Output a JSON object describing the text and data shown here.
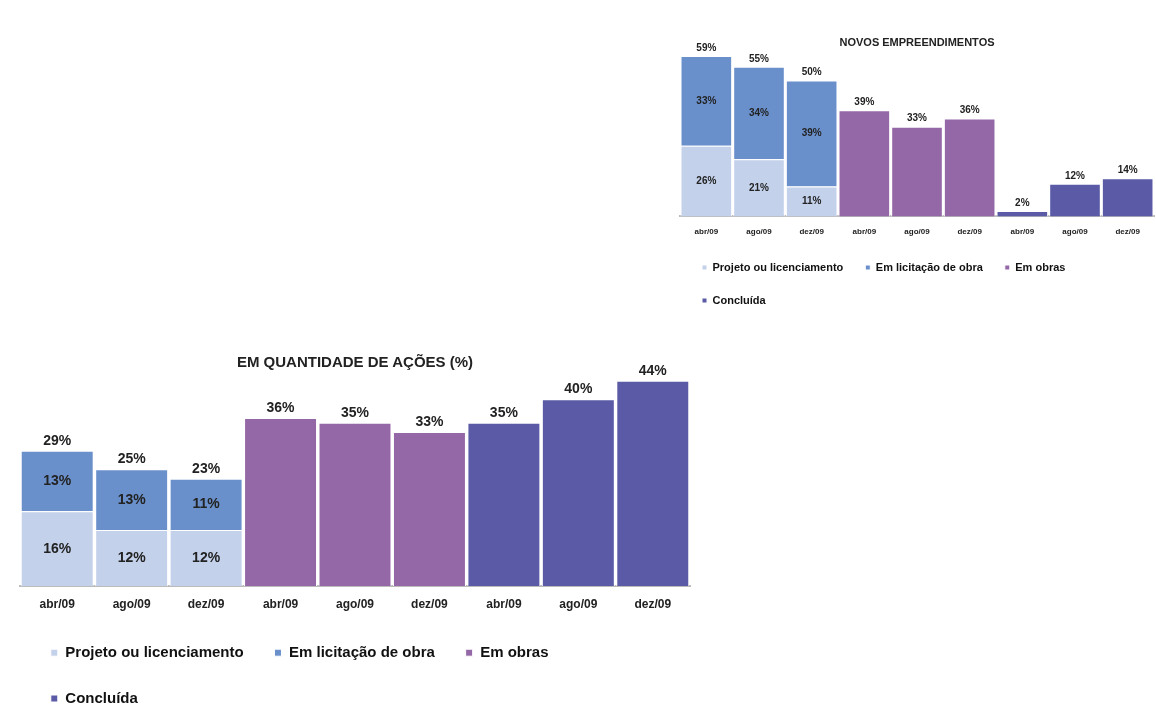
{
  "chart_data": [
    {
      "type": "bar",
      "title": "NOVOS EMPREENDIMENTOS",
      "stacked": true,
      "legend": "bottom",
      "tick_labels": "x",
      "categories": [
        "abr/09",
        "ago/09",
        "dez/09",
        "abr/09",
        "ago/09",
        "dez/09",
        "abr/09",
        "ago/09",
        "dez/09"
      ],
      "series": [
        {
          "name": "Projeto ou licenciamento",
          "color": "#c3d1ea",
          "values": [
            26,
            21,
            11,
            null,
            null,
            null,
            null,
            null,
            null
          ],
          "value_labels": [
            "26%",
            "21%",
            "11%",
            null,
            null,
            null,
            null,
            null,
            null
          ]
        },
        {
          "name": "Em licitação de obra",
          "color": "#6a90cc",
          "values": [
            33,
            34,
            39,
            null,
            null,
            null,
            null,
            null,
            null
          ],
          "value_labels": [
            "33%",
            "34%",
            "39%",
            null,
            null,
            null,
            null,
            null,
            null
          ]
        },
        {
          "name": "Em obras",
          "color": "#9467a6",
          "values": [
            null,
            null,
            null,
            39,
            33,
            36,
            null,
            null,
            null
          ],
          "value_labels": [
            null,
            null,
            null,
            "39%",
            "33%",
            "36%",
            null,
            null,
            null
          ]
        },
        {
          "name": "Concluída",
          "color": "#5a5aa6",
          "values": [
            null,
            null,
            null,
            null,
            null,
            null,
            2,
            12,
            14
          ],
          "value_labels": [
            null,
            null,
            null,
            null,
            null,
            null,
            "2%",
            "12%",
            "14%"
          ]
        }
      ],
      "totals": [
        "59%",
        "55%",
        "50%",
        null,
        null,
        null,
        null,
        null,
        null
      ]
    },
    {
      "type": "bar",
      "title": "EM QUANTIDADE DE AÇÕES (%)",
      "stacked": true,
      "legend": "bottom",
      "tick_labels": "x",
      "categories": [
        "abr/09",
        "ago/09",
        "dez/09",
        "abr/09",
        "ago/09",
        "dez/09",
        "abr/09",
        "ago/09",
        "dez/09"
      ],
      "series": [
        {
          "name": "Projeto ou licenciamento",
          "color": "#c3d1ea",
          "values": [
            16,
            12,
            12,
            null,
            null,
            null,
            null,
            null,
            null
          ],
          "value_labels": [
            "16%",
            "12%",
            "12%",
            null,
            null,
            null,
            null,
            null,
            null
          ]
        },
        {
          "name": "Em licitação de obra",
          "color": "#6a90cc",
          "values": [
            13,
            13,
            11,
            null,
            null,
            null,
            null,
            null,
            null
          ],
          "value_labels": [
            "13%",
            "13%",
            "11%",
            null,
            null,
            null,
            null,
            null,
            null
          ]
        },
        {
          "name": "Em obras",
          "color": "#9467a6",
          "values": [
            null,
            null,
            null,
            36,
            35,
            33,
            null,
            null,
            null
          ],
          "value_labels": [
            null,
            null,
            null,
            "36%",
            "35%",
            "33%",
            null,
            null,
            null
          ]
        },
        {
          "name": "Concluída",
          "color": "#5a5aa6",
          "values": [
            null,
            null,
            null,
            null,
            null,
            null,
            35,
            40,
            44
          ],
          "value_labels": [
            null,
            null,
            null,
            null,
            null,
            null,
            "35%",
            "40%",
            "44%"
          ]
        }
      ],
      "totals": [
        "29%",
        "25%",
        "23%",
        null,
        null,
        null,
        null,
        null,
        null
      ]
    }
  ]
}
